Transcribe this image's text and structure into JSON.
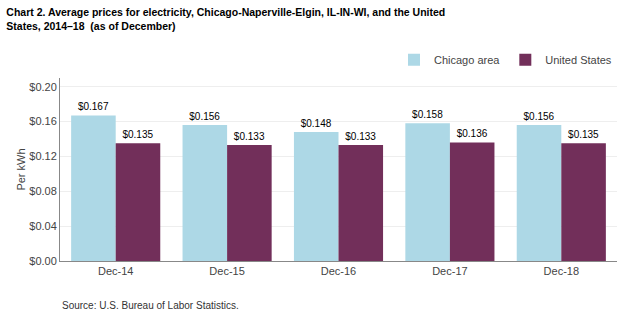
{
  "chart_data": {
    "type": "bar",
    "title": "Chart 2. Average prices for electricity, Chicago-Naperville-Elgin, IL-IN-WI, and the United\nStates, 2014–18  (as of December)",
    "ylabel": "Per kWh",
    "annotations": [
      "Source: U.S. Bureau of Labor Statistics."
    ],
    "categories": [
      "Dec-14",
      "Dec-15",
      "Dec-16",
      "Dec-17",
      "Dec-18"
    ],
    "series": [
      {
        "name": "Chicago area",
        "color": "#add8e6",
        "values": [
          0.167,
          0.156,
          0.148,
          0.158,
          0.156
        ],
        "value_labels": [
          "$0.167",
          "$0.156",
          "$0.148",
          "$0.158",
          "$0.156"
        ]
      },
      {
        "name": "United States",
        "color": "#722f5a",
        "values": [
          0.135,
          0.133,
          0.133,
          0.136,
          0.135
        ],
        "value_labels": [
          "$0.135",
          "$0.133",
          "$0.133",
          "$0.136",
          "$0.135"
        ]
      }
    ],
    "ylim": [
      0.0,
      0.21
    ],
    "yticks": [
      {
        "value": 0.0,
        "label": "$0.00"
      },
      {
        "value": 0.04,
        "label": "$0.04"
      },
      {
        "value": 0.08,
        "label": "$0.08"
      },
      {
        "value": 0.12,
        "label": "$0.12"
      },
      {
        "value": 0.16,
        "label": "$0.16"
      },
      {
        "value": 0.2,
        "label": "$0.20"
      }
    ],
    "grid": true,
    "legend": "upper right",
    "data_labels": true
  }
}
